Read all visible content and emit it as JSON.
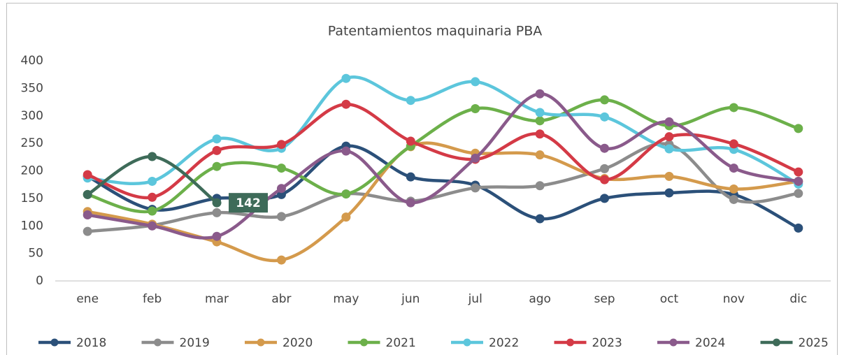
{
  "chart_data": {
    "type": "line",
    "title": "Patentamientos maquinaria PBA",
    "categories": [
      "ene",
      "feb",
      "mar",
      "abr",
      "may",
      "jun",
      "jul",
      "ago",
      "sep",
      "oct",
      "nov",
      "dic"
    ],
    "ylim": [
      0,
      400
    ],
    "yticks": [
      0,
      50,
      100,
      150,
      200,
      250,
      300,
      350,
      400
    ],
    "grid": false,
    "smooth": true,
    "legend": "bottom",
    "series": [
      {
        "name": "2018",
        "color": "#2b5079",
        "values": [
          190,
          130,
          150,
          157,
          245,
          189,
          174,
          113,
          150,
          160,
          157,
          96
        ]
      },
      {
        "name": "2019",
        "color": "#8c8c8c",
        "values": [
          90,
          101,
          124,
          117,
          158,
          145,
          169,
          173,
          204,
          248,
          148,
          159
        ]
      },
      {
        "name": "2020",
        "color": "#d49a4c",
        "values": [
          126,
          103,
          71,
          38,
          116,
          244,
          232,
          229,
          186,
          190,
          167,
          181
        ]
      },
      {
        "name": "2021",
        "color": "#6cb04a",
        "values": [
          157,
          127,
          208,
          205,
          158,
          245,
          313,
          291,
          329,
          282,
          315,
          277
        ]
      },
      {
        "name": "2022",
        "color": "#5cc6dc",
        "values": [
          187,
          181,
          258,
          241,
          368,
          328,
          362,
          306,
          298,
          240,
          239,
          176
        ]
      },
      {
        "name": "2023",
        "color": "#d43a46",
        "values": [
          193,
          152,
          237,
          248,
          321,
          254,
          221,
          267,
          184,
          262,
          249,
          198
        ]
      },
      {
        "name": "2024",
        "color": "#8a5a8b",
        "values": [
          120,
          100,
          81,
          168,
          236,
          142,
          223,
          340,
          241,
          289,
          205,
          181
        ]
      },
      {
        "name": "2025",
        "color": "#3e6b59",
        "values": [
          157,
          226,
          142,
          null,
          null,
          null,
          null,
          null,
          null,
          null,
          null,
          null
        ],
        "labeled_point": 2
      }
    ]
  }
}
